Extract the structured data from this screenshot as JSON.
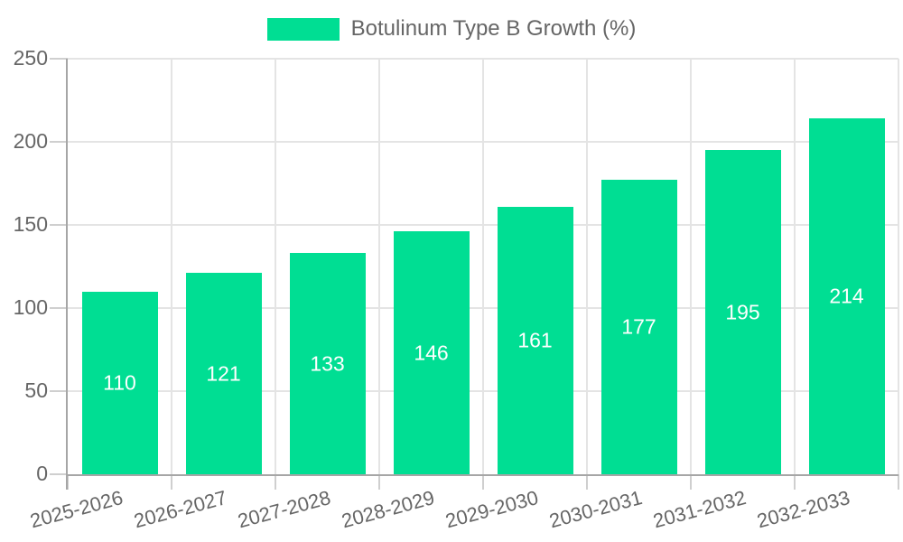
{
  "legend": {
    "label": "Botulinum Type B Growth (%)"
  },
  "colors": {
    "bar": "#00DE93",
    "bar_label": "#ffffff",
    "axis_text": "#666666",
    "grid": "#e4e4e4",
    "tick": "#cfcfcf",
    "axis_line": "#a6a6a6",
    "background": "#ffffff"
  },
  "chart_data": {
    "type": "bar",
    "title": "Botulinum Type B Growth (%)",
    "categories": [
      "2025-2026",
      "2026-2027",
      "2027-2028",
      "2028-2029",
      "2029-2030",
      "2030-2031",
      "2031-2032",
      "2032-2033"
    ],
    "series": [
      {
        "name": "Botulinum Type B Growth (%)",
        "values": [
          110,
          121,
          133,
          146,
          161,
          177,
          195,
          214
        ]
      }
    ],
    "values": [
      110,
      121,
      133,
      146,
      161,
      177,
      195,
      214
    ],
    "bar_value_labels": [
      "110",
      "121",
      "133",
      "146",
      "161",
      "177",
      "195",
      "214"
    ],
    "xlabel": "",
    "ylabel": "",
    "ylim": [
      0,
      250
    ],
    "yticks": [
      0,
      50,
      100,
      150,
      200,
      250
    ],
    "grid": true,
    "legend_position": "top",
    "x_tick_rotation_deg": -15
  }
}
